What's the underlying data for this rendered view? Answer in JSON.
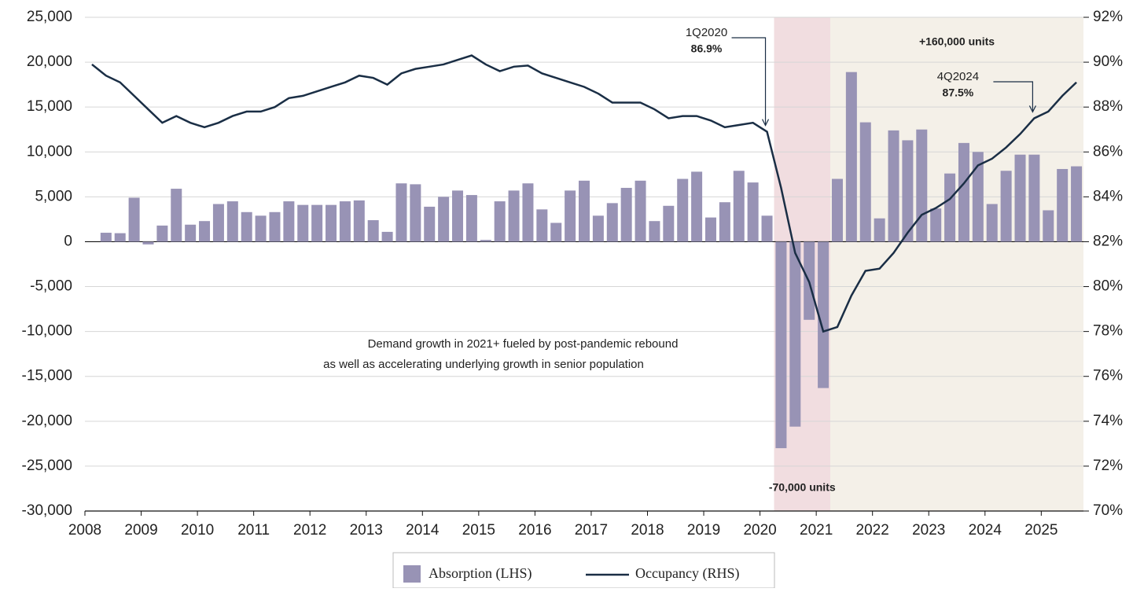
{
  "chart_data": {
    "type": "bar-line",
    "x": [
      2008.125,
      2008.375,
      2008.625,
      2008.875,
      2009.125,
      2009.375,
      2009.625,
      2009.875,
      2010.125,
      2010.375,
      2010.625,
      2010.875,
      2011.125,
      2011.375,
      2011.625,
      2011.875,
      2012.125,
      2012.375,
      2012.625,
      2012.875,
      2013.125,
      2013.375,
      2013.625,
      2013.875,
      2014.125,
      2014.375,
      2014.625,
      2014.875,
      2015.125,
      2015.375,
      2015.625,
      2015.875,
      2016.125,
      2016.375,
      2016.625,
      2016.875,
      2017.125,
      2017.375,
      2017.625,
      2017.875,
      2018.125,
      2018.375,
      2018.625,
      2018.875,
      2019.125,
      2019.375,
      2019.625,
      2019.875,
      2020.125,
      2020.375,
      2020.625,
      2020.875,
      2021.125,
      2021.375,
      2021.625,
      2021.875,
      2022.125,
      2022.375,
      2022.625,
      2022.875,
      2023.125,
      2023.375,
      2023.625,
      2023.875,
      2024.125,
      2024.375,
      2024.625,
      2024.875,
      2025.125,
      2025.375,
      2025.625
    ],
    "series": [
      {
        "name": "Absorption (LHS)",
        "kind": "bar",
        "axis": "y",
        "color": "#9893b5",
        "values": [
          null,
          1000,
          950,
          4900,
          -300,
          1800,
          5900,
          1900,
          2300,
          4200,
          4500,
          3300,
          2900,
          3300,
          4500,
          4100,
          4100,
          4100,
          4500,
          4600,
          2400,
          1100,
          6500,
          6400,
          3900,
          5000,
          5700,
          5200,
          200,
          4500,
          5700,
          6500,
          3600,
          2100,
          5700,
          6800,
          2900,
          4300,
          6000,
          6800,
          2300,
          4000,
          7000,
          7800,
          2700,
          4400,
          7900,
          6600,
          2900,
          -23000,
          -20600,
          -8700,
          -16300,
          7000,
          18900,
          13300,
          2600,
          12400,
          11300,
          12500,
          3700,
          7600,
          11000,
          10000,
          4200,
          7900,
          9700,
          9700,
          3500,
          8100,
          8400
        ]
      },
      {
        "name": "Occupancy (RHS)",
        "kind": "line",
        "axis": "y2",
        "color": "#1a2e45",
        "values": [
          89.9,
          89.4,
          89.1,
          88.5,
          87.9,
          87.3,
          87.6,
          87.3,
          87.1,
          87.3,
          87.6,
          87.8,
          87.8,
          88.0,
          88.4,
          88.5,
          88.7,
          88.9,
          89.1,
          89.4,
          89.3,
          89.0,
          89.5,
          89.7,
          89.8,
          89.9,
          90.1,
          90.3,
          89.9,
          89.6,
          89.8,
          89.85,
          89.5,
          89.3,
          89.1,
          88.9,
          88.6,
          88.2,
          88.2,
          88.2,
          87.9,
          87.5,
          87.6,
          87.6,
          87.4,
          87.1,
          87.2,
          87.3,
          86.9,
          84.4,
          81.5,
          80.2,
          78.0,
          78.2,
          79.6,
          80.7,
          80.8,
          81.5,
          82.4,
          83.2,
          83.5,
          83.9,
          84.6,
          85.4,
          85.7,
          86.2,
          86.8,
          87.5,
          87.8,
          88.5,
          89.1
        ]
      }
    ],
    "xlim": [
      2008,
      2025.75
    ],
    "xticks": [
      2008,
      2009,
      2010,
      2011,
      2012,
      2013,
      2014,
      2015,
      2016,
      2017,
      2018,
      2019,
      2020,
      2021,
      2022,
      2023,
      2024,
      2025
    ],
    "ylim": [
      -30000,
      25000
    ],
    "yticks": [
      {
        "value": -30000,
        "label": "-30,000"
      },
      {
        "value": -25000,
        "label": "-25,000"
      },
      {
        "value": -20000,
        "label": "-20,000"
      },
      {
        "value": -15000,
        "label": "-15,000"
      },
      {
        "value": -10000,
        "label": "-10,000"
      },
      {
        "value": -5000,
        "label": "-5,000"
      },
      0,
      {
        "value": 5000,
        "label": "5,000"
      },
      {
        "value": 10000,
        "label": "10,000"
      },
      {
        "value": 15000,
        "label": "15,000"
      },
      {
        "value": 20000,
        "label": "20,000"
      },
      {
        "value": 25000,
        "label": "25,000"
      }
    ],
    "y2lim": [
      70,
      92
    ],
    "y2ticks": [
      {
        "value": 70,
        "label": "70%"
      },
      {
        "value": 72,
        "label": "72%"
      },
      {
        "value": 74,
        "label": "74%"
      },
      {
        "value": 76,
        "label": "76%"
      },
      {
        "value": 78,
        "label": "78%"
      },
      {
        "value": 80,
        "label": "80%"
      },
      {
        "value": 82,
        "label": "82%"
      },
      {
        "value": 84,
        "label": "84%"
      },
      {
        "value": 86,
        "label": "86%"
      },
      {
        "value": 88,
        "label": "88%"
      },
      {
        "value": 90,
        "label": "90%"
      },
      {
        "value": 92,
        "label": "92%"
      }
    ],
    "grid": true,
    "legend": "bottom",
    "shaded_regions": [
      {
        "from": 2020.25,
        "to": 2021.25,
        "color": "#f1dde0",
        "label": "-70,000 units"
      },
      {
        "from": 2021.25,
        "to": 2025.75,
        "color": "#f4f0e8",
        "label": "+160,000 units"
      }
    ],
    "annotations": [
      {
        "period": "1Q2020",
        "value_label": "86.9%",
        "index": 48
      },
      {
        "period": "4Q2024",
        "value_label": "87.5%",
        "index": 67
      }
    ],
    "note": [
      "Demand growth in 2021+ fueled by post-pandemic rebound",
      "as well as accelerating underlying growth in senior population"
    ]
  }
}
